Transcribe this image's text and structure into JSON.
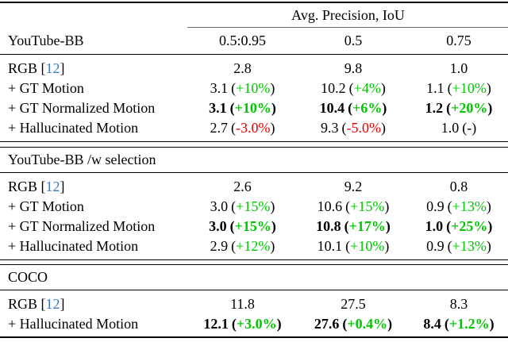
{
  "colors": {
    "positive": "#00C800",
    "negative": "#EE0000",
    "citation": "#3C79C0",
    "text": "#000000"
  },
  "header": {
    "title": "Avg. Precision, IoU",
    "columns": [
      "0.5:0.95",
      "0.5",
      "0.75"
    ]
  },
  "chart_data": {
    "type": "table",
    "title": "Avg. Precision, IoU",
    "columns": [
      "0.5:0.95",
      "0.5",
      "0.75"
    ],
    "sections": [
      {
        "name": "YouTube-BB",
        "rows": [
          {
            "label": "RGB [12]",
            "values": [
              2.8,
              9.8,
              1.0
            ]
          },
          {
            "label": "+ GT Motion",
            "values": [
              3.1,
              10.2,
              1.1
            ],
            "deltas": [
              "+10%",
              "+4%",
              "+10%"
            ]
          },
          {
            "label": "+ GT Normalized Motion",
            "bold": true,
            "values": [
              3.1,
              10.4,
              1.2
            ],
            "deltas": [
              "+10%",
              "+6%",
              "+20%"
            ]
          },
          {
            "label": "+ Hallucinated Motion",
            "values": [
              2.7,
              9.3,
              1.0
            ],
            "deltas": [
              "-3.0%",
              "-5.0%",
              "-"
            ]
          }
        ]
      },
      {
        "name": "YouTube-BB /w selection",
        "rows": [
          {
            "label": "RGB [12]",
            "values": [
              2.6,
              9.2,
              0.8
            ]
          },
          {
            "label": "+ GT Motion",
            "values": [
              3.0,
              10.6,
              0.9
            ],
            "deltas": [
              "+15%",
              "+15%",
              "+13%"
            ]
          },
          {
            "label": "+ GT Normalized Motion",
            "bold": true,
            "values": [
              3.0,
              10.8,
              1.0
            ],
            "deltas": [
              "+15%",
              "+17%",
              "+25%"
            ]
          },
          {
            "label": "+ Hallucinated Motion",
            "values": [
              2.9,
              10.1,
              0.9
            ],
            "deltas": [
              "+12%",
              "+10%",
              "+13%"
            ]
          }
        ]
      },
      {
        "name": "COCO",
        "rows": [
          {
            "label": "RGB [12]",
            "values": [
              11.8,
              27.5,
              8.3
            ]
          },
          {
            "label": "+ Hallucinated Motion",
            "bold": true,
            "values": [
              12.1,
              27.6,
              8.4
            ],
            "deltas": [
              "+3.0%",
              "+0.4%",
              "+1.2%"
            ]
          }
        ]
      }
    ]
  },
  "groups": [
    {
      "name": "YouTube-BB",
      "rows": [
        {
          "label": "RGB [",
          "cite": "12",
          "label_suffix": "]",
          "cells": [
            {
              "v": "2.8"
            },
            {
              "v": "9.8"
            },
            {
              "v": "1.0"
            }
          ]
        },
        {
          "label": "+ GT Motion",
          "cells": [
            {
              "v": "3.1",
              "o": "(",
              "d": "+10%",
              "c": ")"
            },
            {
              "v": "10.2",
              "o": "(",
              "d": "+4%",
              "c": ")"
            },
            {
              "v": "1.1",
              "o": "(",
              "d": "+10%",
              "c": ")"
            }
          ]
        },
        {
          "label": "+ GT Normalized Motion",
          "cells": [
            {
              "v": "3.1",
              "o": "(",
              "d": "+10%",
              "c": ")"
            },
            {
              "v": "10.4",
              "o": "(",
              "d": "+6%",
              "c": ")"
            },
            {
              "v": "1.2",
              "o": "(",
              "d": "+20%",
              "c": ")"
            }
          ]
        },
        {
          "label": "+ Hallucinated Motion",
          "cells": [
            {
              "v": "2.7",
              "o": "(",
              "d": "-3.0%",
              "c": ")"
            },
            {
              "v": "9.3",
              "o": "(",
              "d": "-5.0%",
              "c": ")"
            },
            {
              "v": "1.0",
              "o": "(",
              "d": "-",
              "c": ")"
            }
          ]
        }
      ]
    },
    {
      "name": "YouTube-BB /w selection",
      "rows": [
        {
          "label": "RGB [",
          "cite": "12",
          "label_suffix": "]",
          "cells": [
            {
              "v": "2.6"
            },
            {
              "v": "9.2"
            },
            {
              "v": "0.8"
            }
          ]
        },
        {
          "label": "+ GT Motion",
          "cells": [
            {
              "v": "3.0",
              "o": "(",
              "d": "+15%",
              "c": ")"
            },
            {
              "v": "10.6",
              "o": "(",
              "d": "+15%",
              "c": ")"
            },
            {
              "v": "0.9",
              "o": "(",
              "d": "+13%",
              "c": ")"
            }
          ]
        },
        {
          "label": "+ GT Normalized Motion",
          "cells": [
            {
              "v": "3.0",
              "o": "(",
              "d": "+15%",
              "c": ")"
            },
            {
              "v": "10.8",
              "o": "(",
              "d": "+17%",
              "c": ")"
            },
            {
              "v": "1.0",
              "o": "(",
              "d": "+25%",
              "c": ")"
            }
          ]
        },
        {
          "label": "+ Hallucinated Motion",
          "cells": [
            {
              "v": "2.9",
              "o": "(",
              "d": "+12%",
              "c": ")"
            },
            {
              "v": "10.1",
              "o": "(",
              "d": "+10%",
              "c": ")"
            },
            {
              "v": "0.9",
              "o": "(",
              "d": "+13%",
              "c": ")"
            }
          ]
        }
      ]
    },
    {
      "name": "COCO",
      "rows": [
        {
          "label": "RGB [",
          "cite": "12",
          "label_suffix": "]",
          "cells": [
            {
              "v": "11.8"
            },
            {
              "v": "27.5"
            },
            {
              "v": "8.3"
            }
          ]
        },
        {
          "label": "+ Hallucinated Motion",
          "cells": [
            {
              "v": "12.1",
              "o": "(",
              "d": "+3.0%",
              "c": ")"
            },
            {
              "v": "27.6",
              "o": "(",
              "d": "+0.4%",
              "c": ")"
            },
            {
              "v": "8.4",
              "o": "(",
              "d": "+1.2%",
              "c": ")"
            }
          ]
        }
      ]
    }
  ]
}
